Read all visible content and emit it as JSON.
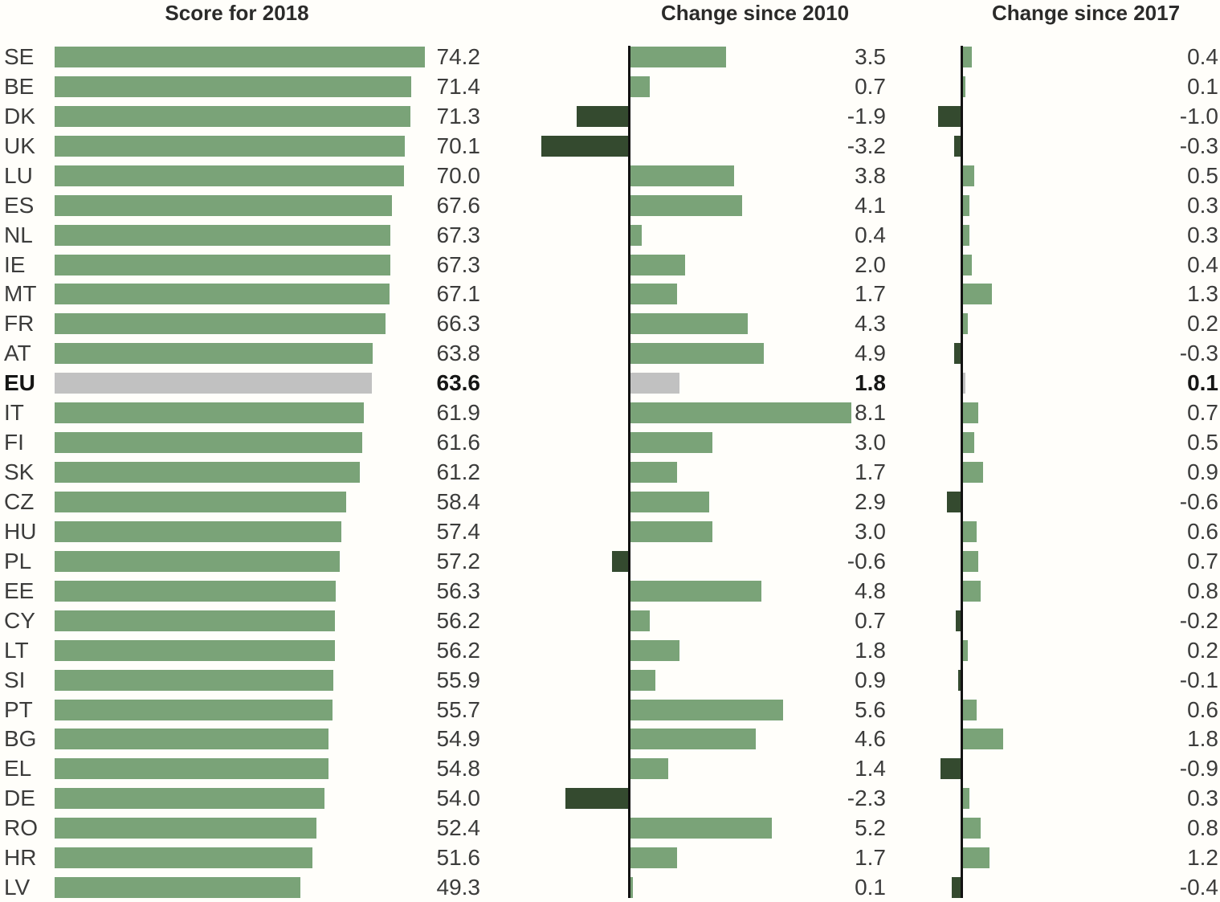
{
  "chart_data": {
    "type": "bar",
    "orientation": "horizontal",
    "grid": false,
    "legend": false,
    "highlight_code": "EU",
    "panels": [
      {
        "title": "Score for 2018",
        "xlim": [
          0,
          80
        ]
      },
      {
        "title": "Change since 2010",
        "xlim": [
          -3.5,
          8.5
        ]
      },
      {
        "title": "Change since 2017",
        "xlim": [
          -1.2,
          2.0
        ]
      }
    ],
    "rows": [
      {
        "code": "SE",
        "score": 74.2,
        "change_since_2010": 3.5,
        "change_since_2017": 0.4
      },
      {
        "code": "BE",
        "score": 71.4,
        "change_since_2010": 0.7,
        "change_since_2017": 0.1
      },
      {
        "code": "DK",
        "score": 71.3,
        "change_since_2010": -1.9,
        "change_since_2017": -1.0
      },
      {
        "code": "UK",
        "score": 70.1,
        "change_since_2010": -3.2,
        "change_since_2017": -0.3
      },
      {
        "code": "LU",
        "score": 70.0,
        "change_since_2010": 3.8,
        "change_since_2017": 0.5
      },
      {
        "code": "ES",
        "score": 67.6,
        "change_since_2010": 4.1,
        "change_since_2017": 0.3
      },
      {
        "code": "NL",
        "score": 67.3,
        "change_since_2010": 0.4,
        "change_since_2017": 0.3
      },
      {
        "code": "IE",
        "score": 67.3,
        "change_since_2010": 2.0,
        "change_since_2017": 0.4
      },
      {
        "code": "MT",
        "score": 67.1,
        "change_since_2010": 1.7,
        "change_since_2017": 1.3
      },
      {
        "code": "FR",
        "score": 66.3,
        "change_since_2010": 4.3,
        "change_since_2017": 0.2
      },
      {
        "code": "AT",
        "score": 63.8,
        "change_since_2010": 4.9,
        "change_since_2017": -0.3
      },
      {
        "code": "EU",
        "score": 63.6,
        "change_since_2010": 1.8,
        "change_since_2017": 0.1
      },
      {
        "code": "IT",
        "score": 61.9,
        "change_since_2010": 8.1,
        "change_since_2017": 0.7
      },
      {
        "code": "FI",
        "score": 61.6,
        "change_since_2010": 3.0,
        "change_since_2017": 0.5
      },
      {
        "code": "SK",
        "score": 61.2,
        "change_since_2010": 1.7,
        "change_since_2017": 0.9
      },
      {
        "code": "CZ",
        "score": 58.4,
        "change_since_2010": 2.9,
        "change_since_2017": -0.6
      },
      {
        "code": "HU",
        "score": 57.4,
        "change_since_2010": 3.0,
        "change_since_2017": 0.6
      },
      {
        "code": "PL",
        "score": 57.2,
        "change_since_2010": -0.6,
        "change_since_2017": 0.7
      },
      {
        "code": "EE",
        "score": 56.3,
        "change_since_2010": 4.8,
        "change_since_2017": 0.8
      },
      {
        "code": "CY",
        "score": 56.2,
        "change_since_2010": 0.7,
        "change_since_2017": -0.2
      },
      {
        "code": "LT",
        "score": 56.2,
        "change_since_2010": 1.8,
        "change_since_2017": 0.2
      },
      {
        "code": "SI",
        "score": 55.9,
        "change_since_2010": 0.9,
        "change_since_2017": -0.1
      },
      {
        "code": "PT",
        "score": 55.7,
        "change_since_2010": 5.6,
        "change_since_2017": 0.6
      },
      {
        "code": "BG",
        "score": 54.9,
        "change_since_2010": 4.6,
        "change_since_2017": 1.8
      },
      {
        "code": "EL",
        "score": 54.8,
        "change_since_2010": 1.4,
        "change_since_2017": -0.9
      },
      {
        "code": "DE",
        "score": 54.0,
        "change_since_2010": -2.3,
        "change_since_2017": 0.3
      },
      {
        "code": "RO",
        "score": 52.4,
        "change_since_2010": 5.2,
        "change_since_2017": 0.8
      },
      {
        "code": "HR",
        "score": 51.6,
        "change_since_2010": 1.7,
        "change_since_2017": 1.2
      },
      {
        "code": "LV",
        "score": 49.3,
        "change_since_2010": 0.1,
        "change_since_2017": -0.4
      }
    ]
  },
  "colors": {
    "positive_bar": "#7aa378",
    "negative_bar": "#344a2f",
    "highlight_bar": "#c1c1c1",
    "axis_line": "#121212",
    "label_text": "#3c3c3b",
    "title_text": "#2b2b2a",
    "background": "#fffefa"
  }
}
